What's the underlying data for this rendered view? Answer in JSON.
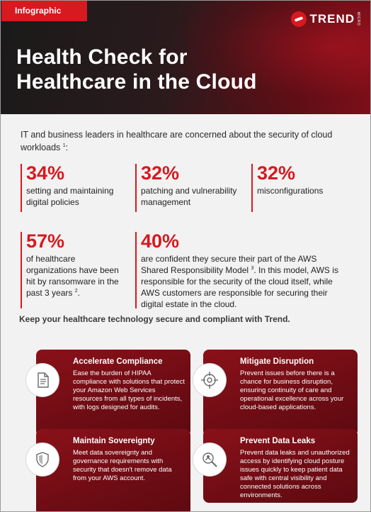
{
  "header": {
    "tag": "Infographic",
    "brand": "TREND",
    "brand_sub": "MICRO",
    "title_line1": "Health Check for",
    "title_line2": "Healthcare in the Cloud"
  },
  "intro": {
    "text": "IT and business leaders in healthcare are concerned about the security of cloud workloads",
    "ref": "1",
    "suffix": ":"
  },
  "stats_row1": [
    {
      "value": "34%",
      "label": "setting and maintaining digital policies"
    },
    {
      "value": "32%",
      "label": "patching and vulnerability management"
    },
    {
      "value": "32%",
      "label": "misconfigurations"
    }
  ],
  "stats_row2": [
    {
      "value": "57%",
      "label": "of healthcare organizations have been hit by ransomware in the past 3 years",
      "ref": "2",
      "end": "."
    },
    {
      "value": "40%",
      "label_a": "are confident they secure their part of the AWS Shared Responsibility Model",
      "ref": "3",
      "label_b": ". In this model, AWS is responsible for the security of the cloud itself, while AWS customers are responsible for securing their digital estate in the cloud."
    }
  ],
  "cta": "Keep your healthcare technology secure and compliant with Trend.",
  "cards": [
    {
      "icon": "document-icon",
      "title": "Accelerate Compliance",
      "body": "Ease the burden of HIPAA compliance with solutions that protect your Amazon Web Services resources from all types of incidents, with logs designed for audits."
    },
    {
      "icon": "crosshair-icon",
      "title": "Mitigate Disruption",
      "body": "Prevent issues before there is a chance for business disruption, ensuring continuity of care and operational excellence across your cloud-based applications."
    },
    {
      "icon": "shield-icon",
      "title": "Maintain Sovereignty",
      "body": "Meet data sovereignty and governance requirements with security that doesn't remove data from your AWS account."
    },
    {
      "icon": "magnifier-icon",
      "title": "Prevent Data Leaks",
      "body": "Prevent data leaks and unauthorized access by identifying cloud posture issues quickly to keep patient data safe with central visibility and connected solutions across environments."
    }
  ],
  "colors": {
    "accent": "#d71920",
    "card": "#7a0f17",
    "dark": "#1a1a1a"
  }
}
